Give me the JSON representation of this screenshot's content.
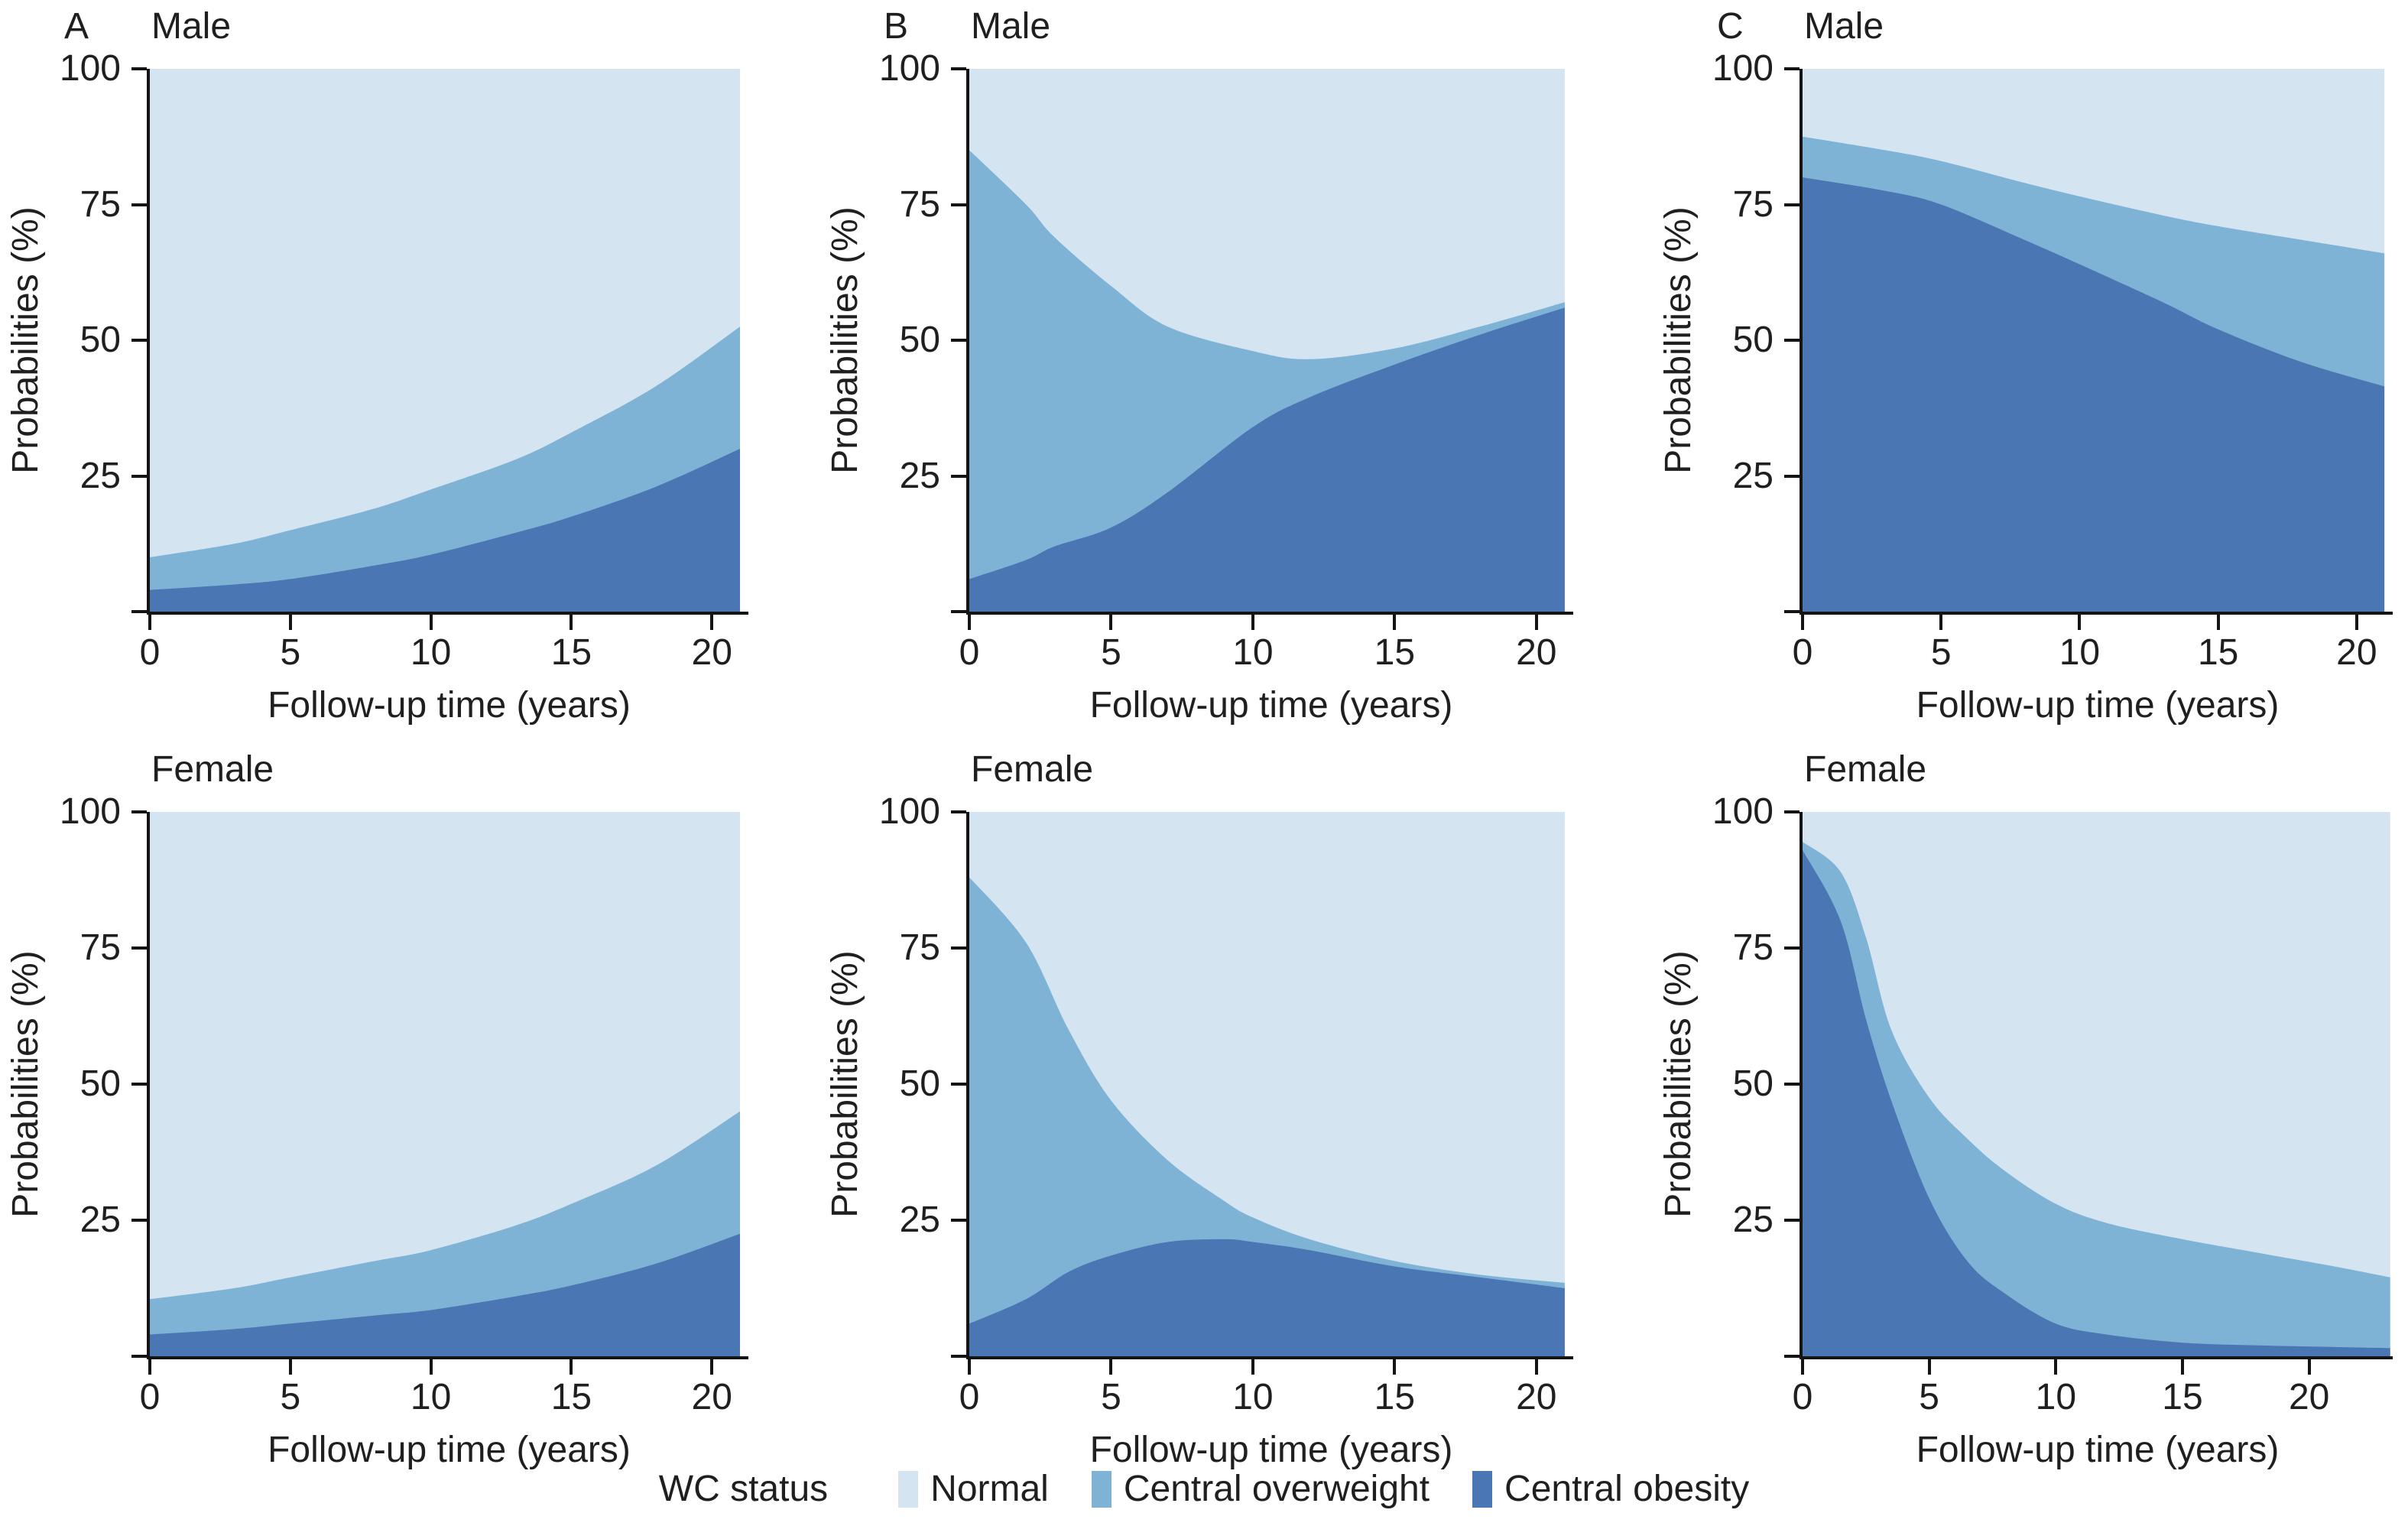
{
  "legend": {
    "title": "WC status",
    "items": [
      {
        "label": "Normal",
        "color": "#d4e4f1"
      },
      {
        "label": "Central overweight",
        "color": "#7fb3d6"
      },
      {
        "label": "Central obesity",
        "color": "#4a77b4"
      }
    ]
  },
  "axes": {
    "ylabel": "Probabilities (%)",
    "xlabel": "Follow-up time (years)",
    "y_ticks": [
      100,
      75,
      50,
      25
    ],
    "x_ticks": [
      0,
      5,
      10,
      15,
      20
    ],
    "ylim": [
      0,
      100
    ]
  },
  "chart_data": [
    {
      "type": "area",
      "stacked": true,
      "stack_order": "bottom-to-top",
      "panel_label": "A",
      "title": "Male",
      "xlabel": "Follow-up time (years)",
      "ylabel": "Probabilities (%)",
      "xlim": [
        0,
        21.3
      ],
      "ylim": [
        0,
        100
      ],
      "x_ticks": [
        0,
        5,
        10,
        15,
        20
      ],
      "y_ticks": [
        100,
        75,
        50,
        25
      ],
      "x": [
        0,
        3,
        5,
        8,
        10,
        13,
        15,
        18,
        21
      ],
      "series": [
        {
          "name": "Central obesity",
          "values": [
            4,
            5,
            6,
            8.5,
            10.5,
            14.5,
            17.5,
            23,
            30
          ]
        },
        {
          "name": "Central overweight",
          "values": [
            6,
            7.5,
            9,
            10.5,
            12,
            13.5,
            15.5,
            18.5,
            22.5
          ]
        },
        {
          "name": "Normal",
          "values": [
            90,
            87.5,
            85,
            81,
            77.5,
            72,
            67,
            58.5,
            47.5
          ]
        }
      ]
    },
    {
      "type": "area",
      "stacked": true,
      "stack_order": "bottom-to-top",
      "panel_label": "B",
      "title": "Male",
      "xlabel": "Follow-up time (years)",
      "ylabel": "Probabilities (%)",
      "xlim": [
        0,
        21.3
      ],
      "ylim": [
        0,
        100
      ],
      "x_ticks": [
        0,
        5,
        10,
        15,
        20
      ],
      "y_ticks": [
        100,
        75,
        50,
        25
      ],
      "x": [
        0,
        2,
        3,
        5,
        7,
        10,
        12,
        15,
        18,
        21
      ],
      "series": [
        {
          "name": "Central obesity",
          "values": [
            6,
            9.5,
            12,
            15.5,
            22,
            34,
            39.5,
            45.5,
            51,
            56
          ]
        },
        {
          "name": "Central overweight",
          "values": [
            79,
            65.5,
            57,
            44.5,
            30.5,
            14,
            7,
            3,
            1.5,
            1
          ]
        },
        {
          "name": "Normal",
          "values": [
            15,
            25,
            31,
            40,
            47.5,
            52,
            53.5,
            51.5,
            47.5,
            43
          ]
        }
      ]
    },
    {
      "type": "area",
      "stacked": true,
      "stack_order": "bottom-to-top",
      "panel_label": "C",
      "title": "Male",
      "xlabel": "Follow-up time (years)",
      "ylabel": "Probabilities (%)",
      "xlim": [
        0,
        21.3
      ],
      "ylim": [
        0,
        100
      ],
      "x_ticks": [
        0,
        5,
        10,
        15,
        20
      ],
      "y_ticks": [
        100,
        75,
        50,
        25
      ],
      "x": [
        0,
        3,
        5,
        8,
        10,
        13,
        15,
        18,
        21
      ],
      "series": [
        {
          "name": "Central obesity",
          "values": [
            80,
            77.5,
            75,
            68.5,
            64,
            57,
            52,
            46,
            41.5
          ]
        },
        {
          "name": "Central overweight",
          "values": [
            7.5,
            7.5,
            8,
            10.5,
            12.5,
            16,
            19,
            22.5,
            24.5
          ]
        },
        {
          "name": "Normal",
          "values": [
            12.5,
            15,
            17,
            21,
            23.5,
            27,
            29,
            31.5,
            34
          ]
        }
      ]
    },
    {
      "type": "area",
      "stacked": true,
      "stack_order": "bottom-to-top",
      "panel_label": "",
      "title": "Female",
      "xlabel": "Follow-up time (years)",
      "ylabel": "Probabilities (%)",
      "xlim": [
        0,
        21.3
      ],
      "ylim": [
        0,
        100
      ],
      "x_ticks": [
        0,
        5,
        10,
        15,
        20
      ],
      "y_ticks": [
        100,
        75,
        50,
        25
      ],
      "x": [
        0,
        3,
        5,
        8,
        10,
        13,
        15,
        18,
        21
      ],
      "series": [
        {
          "name": "Central obesity",
          "values": [
            4,
            5,
            6,
            7.5,
            8.5,
            11,
            13,
            17,
            22.5
          ]
        },
        {
          "name": "Central overweight",
          "values": [
            6.5,
            7.5,
            8.5,
            10,
            11,
            13,
            15,
            18,
            22.5
          ]
        },
        {
          "name": "Normal",
          "values": [
            89.5,
            87.5,
            85.5,
            82.5,
            80.5,
            76,
            72,
            65,
            55
          ]
        }
      ]
    },
    {
      "type": "area",
      "stacked": true,
      "stack_order": "bottom-to-top",
      "panel_label": "",
      "title": "Female",
      "xlabel": "Follow-up time (years)",
      "ylabel": "Probabilities (%)",
      "xlim": [
        0,
        21.3
      ],
      "ylim": [
        0,
        100
      ],
      "x_ticks": [
        0,
        5,
        10,
        15,
        20
      ],
      "y_ticks": [
        100,
        75,
        50,
        25
      ],
      "x": [
        0,
        2,
        3.5,
        5,
        7,
        9,
        10,
        12,
        15,
        18,
        21
      ],
      "series": [
        {
          "name": "Central obesity",
          "values": [
            6,
            10.5,
            15.5,
            18.5,
            21,
            21.5,
            21,
            19.5,
            16.5,
            14.5,
            12.5
          ]
        },
        {
          "name": "Central overweight",
          "values": [
            82,
            65.5,
            44.5,
            28.5,
            15,
            7,
            4.5,
            2,
            1,
            0.5,
            1
          ]
        },
        {
          "name": "Normal",
          "values": [
            12,
            24,
            40,
            53,
            64,
            71.5,
            74.5,
            78.5,
            82.5,
            85,
            86.5
          ]
        }
      ]
    },
    {
      "type": "area",
      "stacked": true,
      "stack_order": "bottom-to-top",
      "panel_label": "",
      "title": "Female",
      "xlabel": "Follow-up time (years)",
      "ylabel": "Probabilities (%)",
      "xlim": [
        0,
        23.3
      ],
      "ylim": [
        0,
        100
      ],
      "x_ticks": [
        0,
        5,
        10,
        15,
        20
      ],
      "y_ticks": [
        100,
        75,
        50,
        25
      ],
      "x": [
        0,
        1.5,
        2.5,
        3.5,
        5,
        6.5,
        8,
        10,
        12,
        15,
        18,
        21,
        23.2
      ],
      "series": [
        {
          "name": "Central obesity",
          "values": [
            93,
            80,
            62,
            47,
            29,
            17.5,
            11.5,
            6,
            4,
            2.5,
            2,
            1.7,
            1.5
          ]
        },
        {
          "name": "Central overweight",
          "values": [
            1.5,
            9,
            15,
            13,
            18.5,
            22.5,
            22.5,
            22,
            20.5,
            19,
            17,
            14.8,
            13
          ]
        },
        {
          "name": "Normal",
          "values": [
            5.5,
            11,
            23,
            40,
            52.5,
            60,
            66,
            72,
            75.5,
            78.5,
            81,
            83.5,
            85.5
          ]
        }
      ]
    }
  ]
}
